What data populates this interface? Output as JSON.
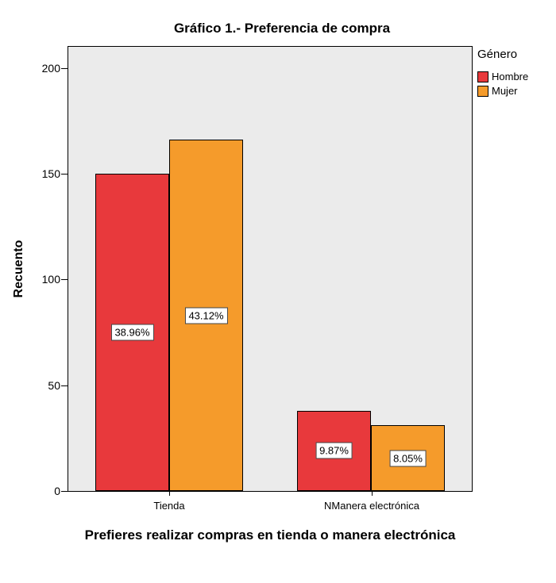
{
  "chart_data": {
    "type": "bar",
    "title": "Gráfico 1.- Preferencia de compra",
    "xlabel": "Prefieres realizar compras en tienda o manera electrónica",
    "ylabel": "Recuento",
    "categories": [
      "Tienda",
      "NManera electrónica"
    ],
    "series": [
      {
        "name": "Hombre",
        "color": "#E8393C",
        "values": [
          150,
          38
        ],
        "labels": [
          "38.96%",
          "9.87%"
        ]
      },
      {
        "name": "Mujer",
        "color": "#F59B2B",
        "values": [
          166,
          31
        ],
        "labels": [
          "43.12%",
          "8.05%"
        ]
      }
    ],
    "yticks": [
      0,
      50,
      100,
      150,
      200
    ],
    "ylim": [
      0,
      210
    ],
    "grid": false,
    "plot_bg": "#EBEBEB",
    "legend": {
      "title": "Género",
      "position": "right"
    }
  }
}
